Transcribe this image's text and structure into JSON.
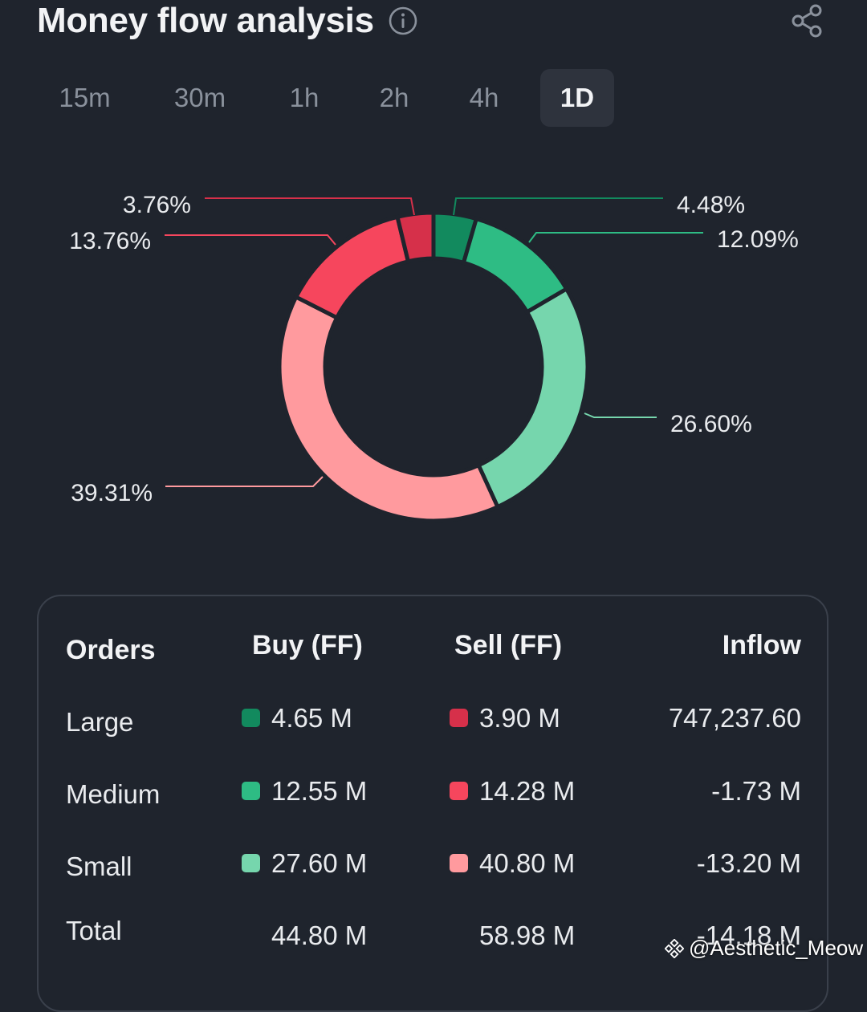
{
  "header": {
    "title": "Money flow analysis"
  },
  "tabs": [
    {
      "label": "15m",
      "active": false
    },
    {
      "label": "30m",
      "active": false
    },
    {
      "label": "1h",
      "active": false
    },
    {
      "label": "2h",
      "active": false
    },
    {
      "label": "4h",
      "active": false
    },
    {
      "label": "1D",
      "active": true
    }
  ],
  "chart_data": {
    "type": "pie",
    "donut": true,
    "slices": [
      {
        "label": "4.48%",
        "value": 4.48,
        "color": "#128a5e"
      },
      {
        "label": "12.09%",
        "value": 12.09,
        "color": "#2ebc84"
      },
      {
        "label": "26.60%",
        "value": 26.6,
        "color": "#76d6ad"
      },
      {
        "label": "39.31%",
        "value": 39.31,
        "color": "#ff9a9e"
      },
      {
        "label": "13.76%",
        "value": 13.76,
        "color": "#f6465d"
      },
      {
        "label": "3.76%",
        "value": 3.76,
        "color": "#d6304a"
      }
    ]
  },
  "table": {
    "headers": {
      "orders": "Orders",
      "buy": "Buy (FF)",
      "sell": "Sell (FF)",
      "inflow": "Inflow"
    },
    "rows": [
      {
        "label": "Large",
        "buy": "4.65 M",
        "sell": "3.90 M",
        "inflow": "747,237.60",
        "buy_color": "#128a5e",
        "sell_color": "#d6304a"
      },
      {
        "label": "Medium",
        "buy": "12.55 M",
        "sell": "14.28 M",
        "inflow": "-1.73 M",
        "buy_color": "#2ebc84",
        "sell_color": "#f6465d"
      },
      {
        "label": "Small",
        "buy": "27.60 M",
        "sell": "40.80 M",
        "inflow": "-13.20 M",
        "buy_color": "#76d6ad",
        "sell_color": "#ff9a9e"
      },
      {
        "label": "Total",
        "buy": "44.80 M",
        "sell": "58.98 M",
        "inflow": "-14.18 M"
      }
    ]
  },
  "watermark": {
    "text": "@Aesthetic_Meow"
  }
}
